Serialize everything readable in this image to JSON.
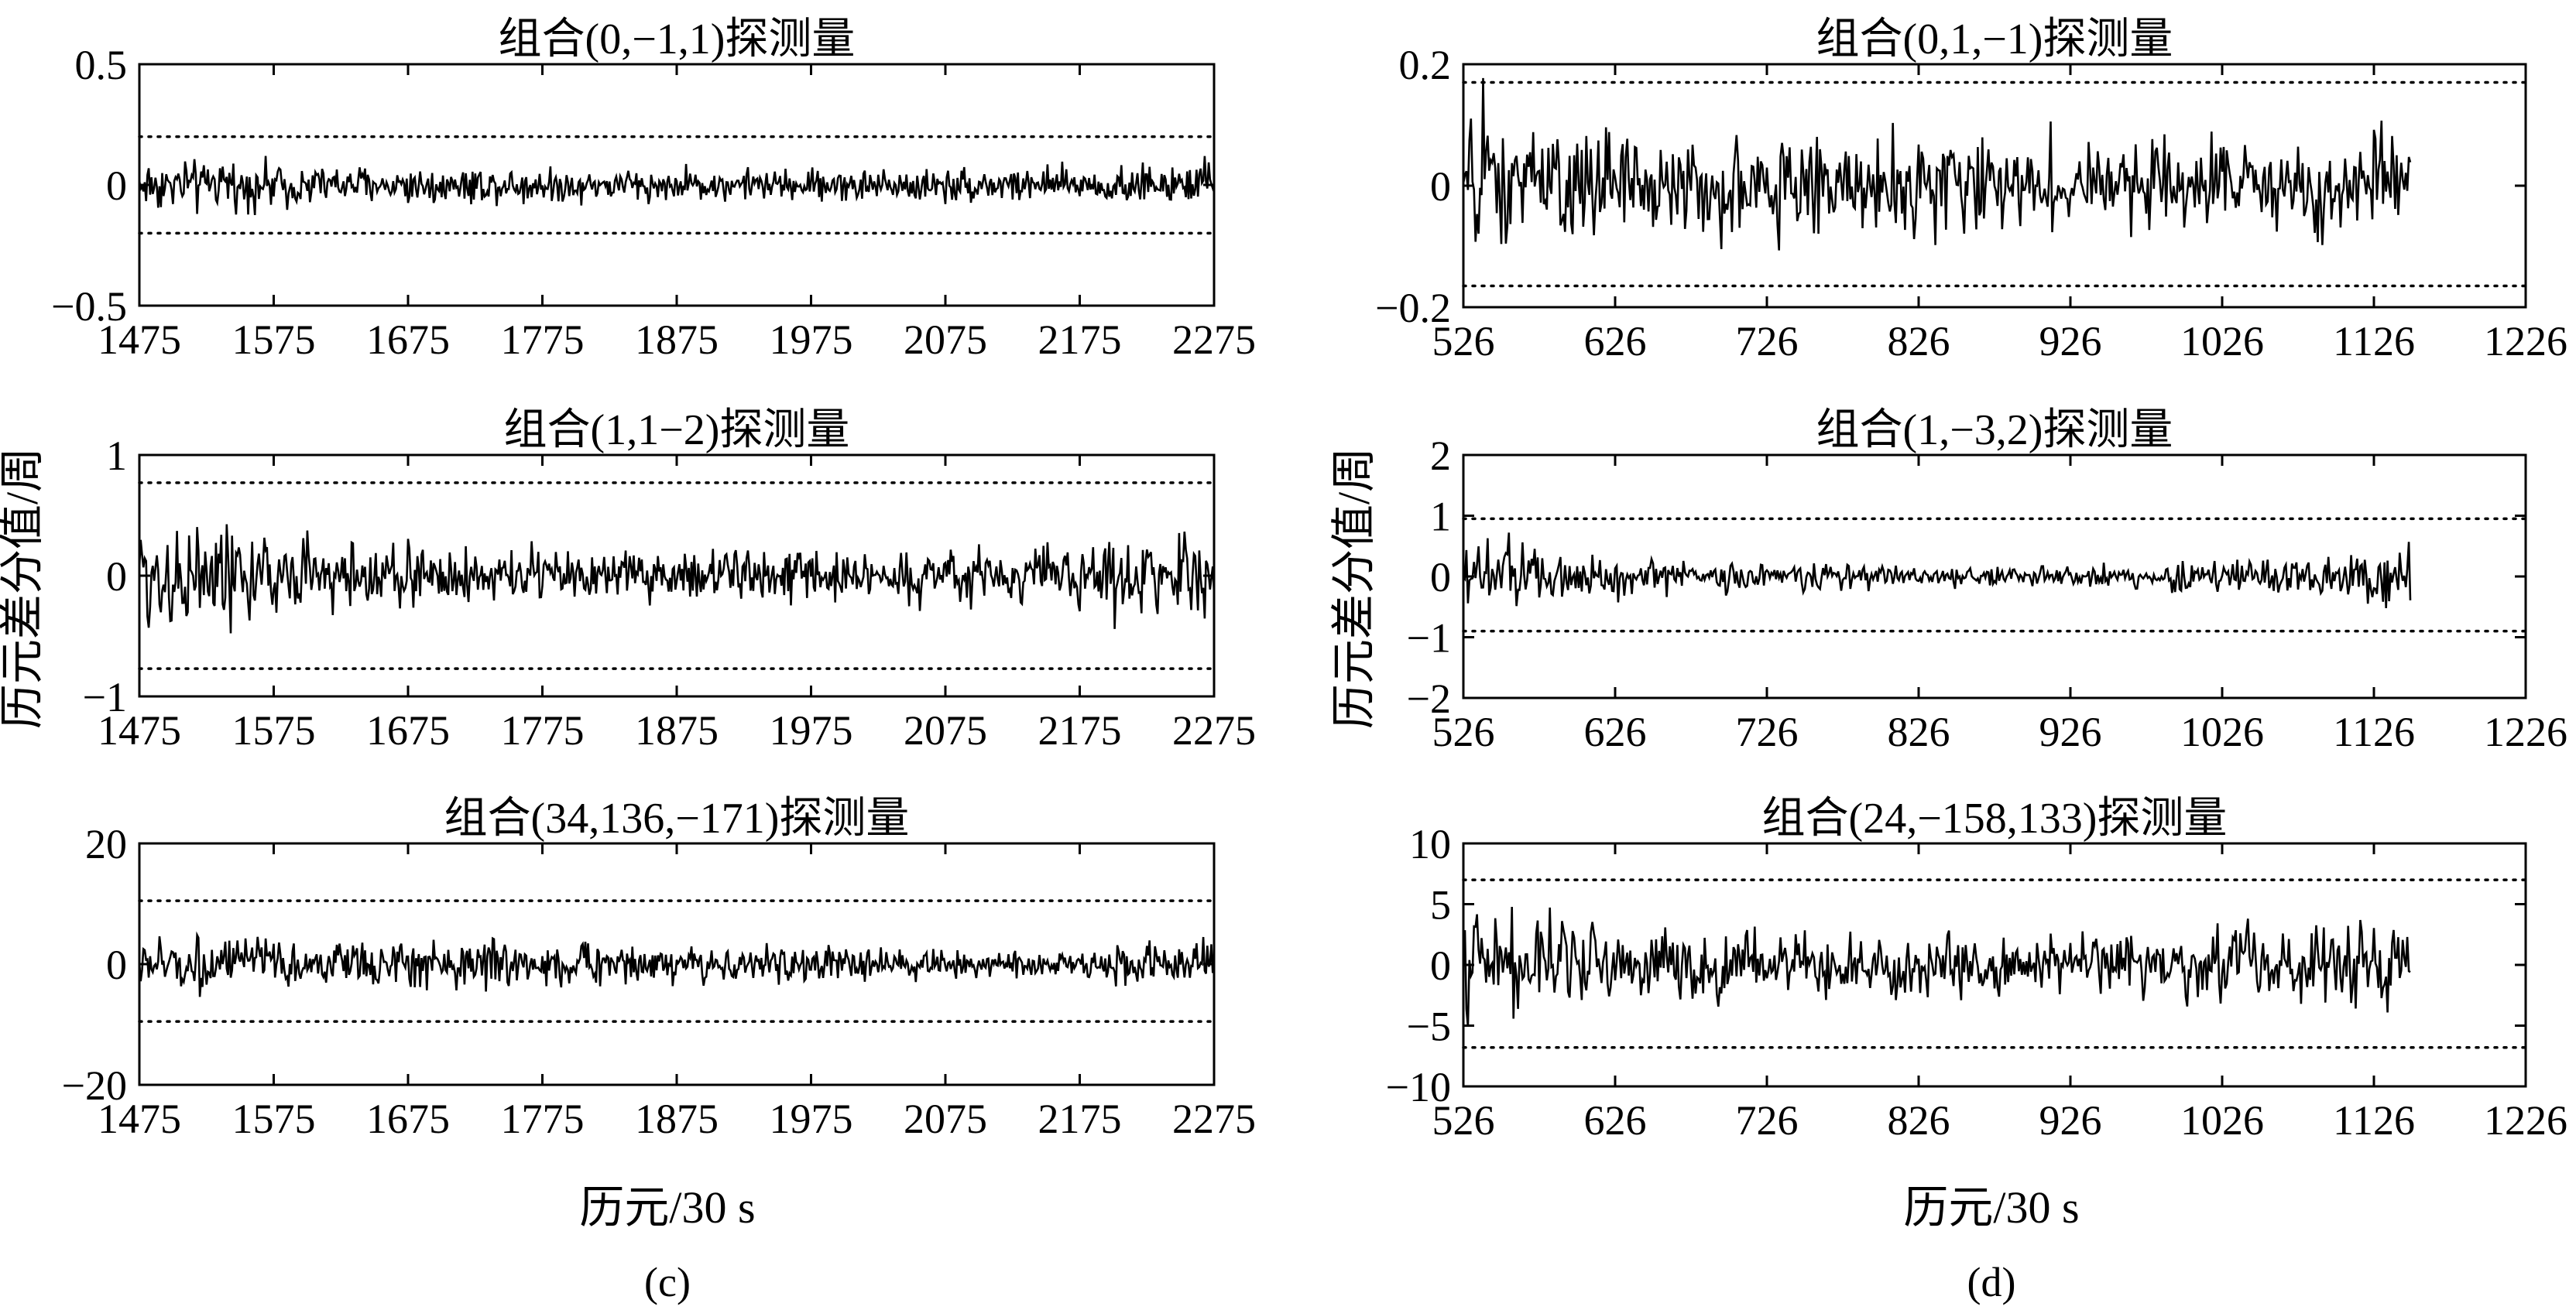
{
  "figure": {
    "ylabel": "历元差分值/周",
    "xlabel": "历元/30 s",
    "captions": [
      "(c)",
      "(d)"
    ]
  },
  "style": {
    "line_color": "#000000",
    "threshold_style": "dotted"
  },
  "chart_data": [
    {
      "type": "line",
      "panel": "c",
      "row": 0,
      "title": "组合(0,−1,1)探测量",
      "xlim": [
        1475,
        2275
      ],
      "ylim": [
        -0.5,
        0.5
      ],
      "xticks": [
        1475,
        1575,
        1675,
        1775,
        1875,
        1975,
        2075,
        2175,
        2275
      ],
      "xtick_labels": [
        "1475",
        "1575",
        "1675",
        "1775",
        "1875",
        "1975",
        "2075",
        "2175",
        "2275"
      ],
      "yticks": [
        -0.5,
        0,
        0.5
      ],
      "ytick_labels": [
        "−0.5",
        "0",
        "0.5"
      ],
      "thresholds": [
        0.2,
        -0.2
      ],
      "series": {
        "x_start": 1475,
        "x_end": 2275,
        "step": 1,
        "noise_envelope": [
          0.16,
          0.12,
          0.11,
          0.09,
          0.1,
          0.11,
          0.12
        ]
      }
    },
    {
      "type": "line",
      "panel": "c",
      "row": 1,
      "title": "组合(1,1−2)探测量",
      "xlim": [
        1475,
        2275
      ],
      "ylim": [
        -1,
        1
      ],
      "xticks": [
        1475,
        1575,
        1675,
        1775,
        1875,
        1975,
        2075,
        2175,
        2275
      ],
      "xtick_labels": [
        "1475",
        "1575",
        "1675",
        "1775",
        "1875",
        "1975",
        "2075",
        "2175",
        "2275"
      ],
      "yticks": [
        -1,
        0,
        1
      ],
      "ytick_labels": [
        "−1",
        "0",
        "1"
      ],
      "thresholds": [
        0.77,
        -0.77
      ],
      "series": {
        "x_start": 1475,
        "x_end": 2275,
        "step": 1,
        "noise_envelope": [
          0.72,
          0.45,
          0.35,
          0.28,
          0.3,
          0.33,
          0.5
        ]
      }
    },
    {
      "type": "line",
      "panel": "c",
      "row": 2,
      "title": "组合(34,136,−171)探测量",
      "xlim": [
        1475,
        2275
      ],
      "ylim": [
        -20,
        20
      ],
      "xticks": [
        1475,
        1575,
        1675,
        1775,
        1875,
        1975,
        2075,
        2175,
        2275
      ],
      "xtick_labels": [
        "1475",
        "1575",
        "1675",
        "1775",
        "1875",
        "1975",
        "2075",
        "2175",
        "2275"
      ],
      "yticks": [
        -20,
        0,
        20
      ],
      "ytick_labels": [
        "−20",
        "0",
        "20"
      ],
      "thresholds": [
        10.5,
        -9.5
      ],
      "series": {
        "x_start": 1475,
        "x_end": 2275,
        "step": 1,
        "noise_envelope": [
          7,
          5,
          6,
          4,
          4,
          3,
          6
        ]
      }
    },
    {
      "type": "line",
      "panel": "d",
      "row": 0,
      "title": "组合(0,1,−1)探测量",
      "xlim": [
        526,
        1226
      ],
      "ylim": [
        -0.2,
        0.2
      ],
      "xticks": [
        526,
        626,
        726,
        826,
        926,
        1026,
        1126,
        1226
      ],
      "xtick_labels": [
        "526",
        "626",
        "726",
        "826",
        "926",
        "1026",
        "1126",
        "1226"
      ],
      "yticks": [
        -0.2,
        0,
        0.2
      ],
      "ytick_labels": [
        "−0.2",
        "0",
        "0.2"
      ],
      "thresholds": [
        0.17,
        -0.165
      ],
      "series": {
        "x_start": 526,
        "x_end": 1150,
        "step": 1,
        "noise_envelope": [
          0.16,
          0.13,
          0.12,
          0.11,
          0.1,
          0.1,
          0.12
        ]
      }
    },
    {
      "type": "line",
      "panel": "d",
      "row": 1,
      "title": "组合(1,−3,2)探测量",
      "xlim": [
        526,
        1226
      ],
      "ylim": [
        -2,
        2
      ],
      "xticks": [
        526,
        626,
        726,
        826,
        926,
        1026,
        1126,
        1226
      ],
      "xtick_labels": [
        "526",
        "626",
        "726",
        "826",
        "926",
        "1026",
        "1126",
        "1226"
      ],
      "yticks": [
        -2,
        -1,
        0,
        1,
        2
      ],
      "ytick_labels": [
        "−2",
        "−1",
        "0",
        "1",
        "2"
      ],
      "thresholds": [
        0.95,
        -0.9
      ],
      "series": {
        "x_start": 526,
        "x_end": 1150,
        "step": 1,
        "noise_envelope": [
          1.0,
          0.5,
          0.3,
          0.25,
          0.3,
          0.4,
          0.7
        ]
      }
    },
    {
      "type": "line",
      "panel": "d",
      "row": 2,
      "title": "组合(24,−158,133)探测量",
      "xlim": [
        526,
        1226
      ],
      "ylim": [
        -10,
        10
      ],
      "xticks": [
        526,
        626,
        726,
        826,
        926,
        1026,
        1126,
        1226
      ],
      "xtick_labels": [
        "526",
        "626",
        "726",
        "826",
        "926",
        "1026",
        "1126",
        "1226"
      ],
      "yticks": [
        -10,
        -5,
        0,
        5,
        10
      ],
      "ytick_labels": [
        "−10",
        "−5",
        "0",
        "5",
        "10"
      ],
      "thresholds": [
        7,
        -6.8
      ],
      "series": {
        "x_start": 526,
        "x_end": 1150,
        "step": 1,
        "noise_envelope": [
          6,
          5,
          4,
          3.5,
          3.5,
          4,
          5.5
        ]
      }
    }
  ]
}
